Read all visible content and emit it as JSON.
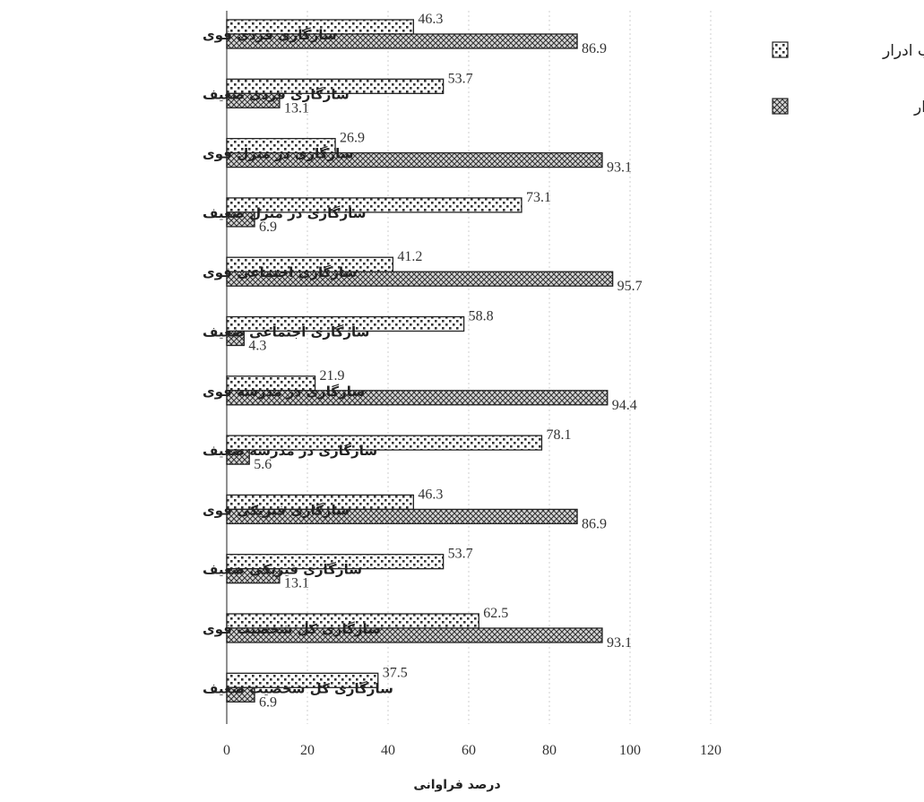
{
  "chart_data": {
    "type": "bar",
    "orientation": "horizontal",
    "categories": [
      "سازگاری فردی قوی",
      "سازگاری فردی ضعیف",
      "سازگاری در منزل قوی",
      "سازگاری در منزل ضعیف",
      "سازگاری اجتماعی قوی",
      "سازگاری اجتماعی ضعیف",
      "سازگاری در مدرسه قوی",
      "سازگاری در مدرسه ضعیف",
      "سازگاری فیزیکی قوی",
      "سازگاری فیزیکی ضعیف",
      "سازگاری کل شخصیت قوی",
      "سازگاری کل شخصیت ضعیف"
    ],
    "series": [
      {
        "name": "شب ادرار",
        "values": [
          46.3,
          53.7,
          26.9,
          73.1,
          41.2,
          58.8,
          21.9,
          78.1,
          46.3,
          53.7,
          62.5,
          37.5
        ]
      },
      {
        "name": "غیر شب ادرار",
        "values": [
          86.9,
          13.1,
          93.1,
          6.9,
          95.7,
          4.3,
          94.4,
          5.6,
          86.9,
          13.1,
          93.1,
          6.9
        ]
      }
    ],
    "xlabel": "درصد فراوانی",
    "xlim": [
      0,
      120
    ],
    "xticks": [
      0,
      20,
      40,
      60,
      80,
      100,
      120
    ],
    "grid": true,
    "legend_position": "top-right"
  }
}
